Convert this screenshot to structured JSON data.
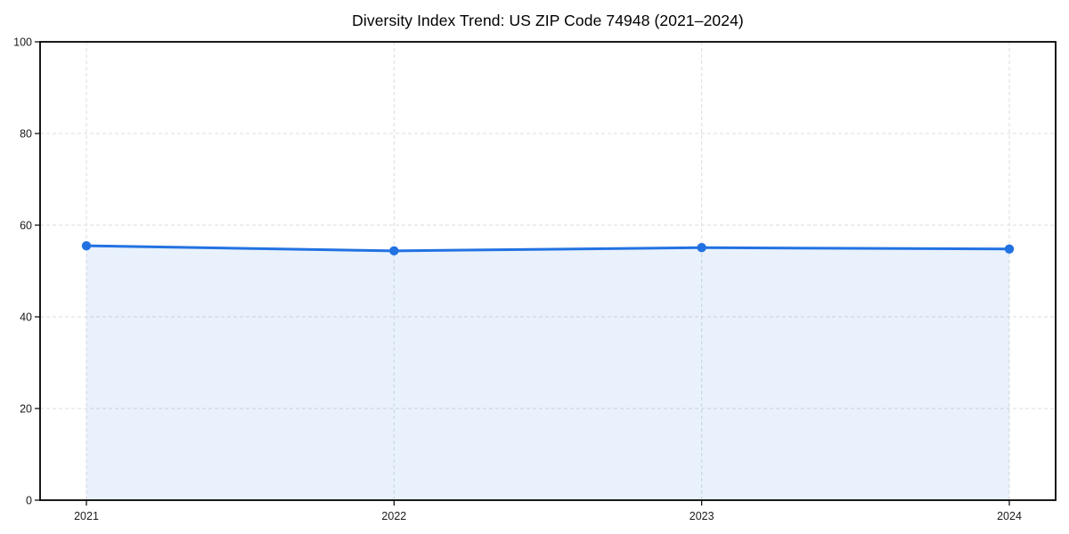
{
  "chart_data": {
    "type": "line",
    "subtype": "area-filled-line-with-markers",
    "title": "Diversity Index Trend: US ZIP Code 74948 (2021–2024)",
    "xlabel": "",
    "ylabel": "",
    "categories": [
      "2021",
      "2022",
      "2023",
      "2024"
    ],
    "series": [
      {
        "name": "Diversity Index",
        "values": [
          55.5,
          54.4,
          55.1,
          54.8
        ]
      }
    ],
    "ylim": [
      0,
      100
    ],
    "yticks": [
      0,
      20,
      40,
      60,
      80,
      100
    ],
    "grid": "dashed-both-axes",
    "legend_position": "none",
    "colors": {
      "line": "#2272e2",
      "marker": "#2272e2",
      "fill": "rgba(34,114,226,0.10)",
      "grid": "#dcdcdc",
      "spine": "#000000",
      "tick_label": "#1a1a1a",
      "title": "#000000",
      "background": "#ffffff"
    }
  }
}
